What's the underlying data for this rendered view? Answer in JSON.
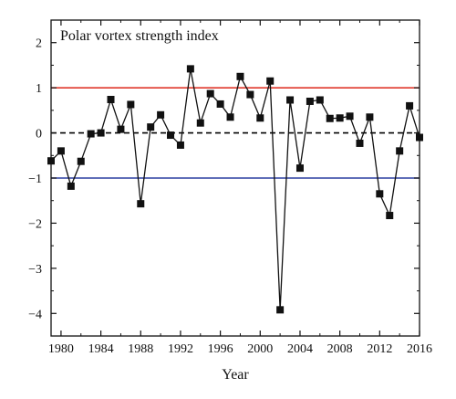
{
  "chart_data": {
    "type": "line",
    "title": "Polar vortex strength index",
    "xlabel": "Year",
    "ylabel": "",
    "xlim": [
      1979,
      2016
    ],
    "ylim": [
      -4.5,
      2.5
    ],
    "x_ticks": [
      1980,
      1984,
      1988,
      1992,
      1996,
      2000,
      2004,
      2008,
      2012,
      2016
    ],
    "x_tick_labels": [
      "1980",
      "1984",
      "1988",
      "1992",
      "1996",
      "2000",
      "2004",
      "2008",
      "2012",
      "2016"
    ],
    "y_ticks": [
      -4,
      -3,
      -2,
      -1,
      0,
      1,
      2
    ],
    "y_tick_labels": [
      "−4",
      "−3",
      "−2",
      "−1",
      "0",
      "1",
      "2"
    ],
    "grid": false,
    "reference_lines": [
      {
        "y": 1,
        "color": "#e0382b",
        "style": "solid"
      },
      {
        "y": 0,
        "color": "#000000",
        "style": "dashed"
      },
      {
        "y": -1,
        "color": "#2c3ea0",
        "style": "solid"
      }
    ],
    "series": [
      {
        "color": "#111111",
        "marker": "square",
        "x": [
          1979,
          1980,
          1981,
          1982,
          1983,
          1984,
          1985,
          1986,
          1987,
          1988,
          1989,
          1990,
          1991,
          1992,
          1993,
          1994,
          1995,
          1996,
          1997,
          1998,
          1999,
          2000,
          2001,
          2002,
          2003,
          2004,
          2005,
          2006,
          2007,
          2008,
          2009,
          2010,
          2011,
          2012,
          2013,
          2014,
          2015,
          2016
        ],
        "values": [
          -0.62,
          -0.4,
          -1.18,
          -0.63,
          -0.02,
          0.0,
          0.74,
          0.08,
          0.63,
          -1.57,
          0.13,
          0.4,
          -0.05,
          -0.27,
          1.42,
          0.22,
          0.87,
          0.64,
          0.35,
          1.25,
          0.85,
          0.33,
          1.15,
          -3.92,
          0.73,
          -0.78,
          0.7,
          0.73,
          0.32,
          0.33,
          0.37,
          -0.23,
          0.35,
          -1.35,
          -1.83,
          -0.4,
          0.6,
          -0.1
        ]
      }
    ]
  }
}
